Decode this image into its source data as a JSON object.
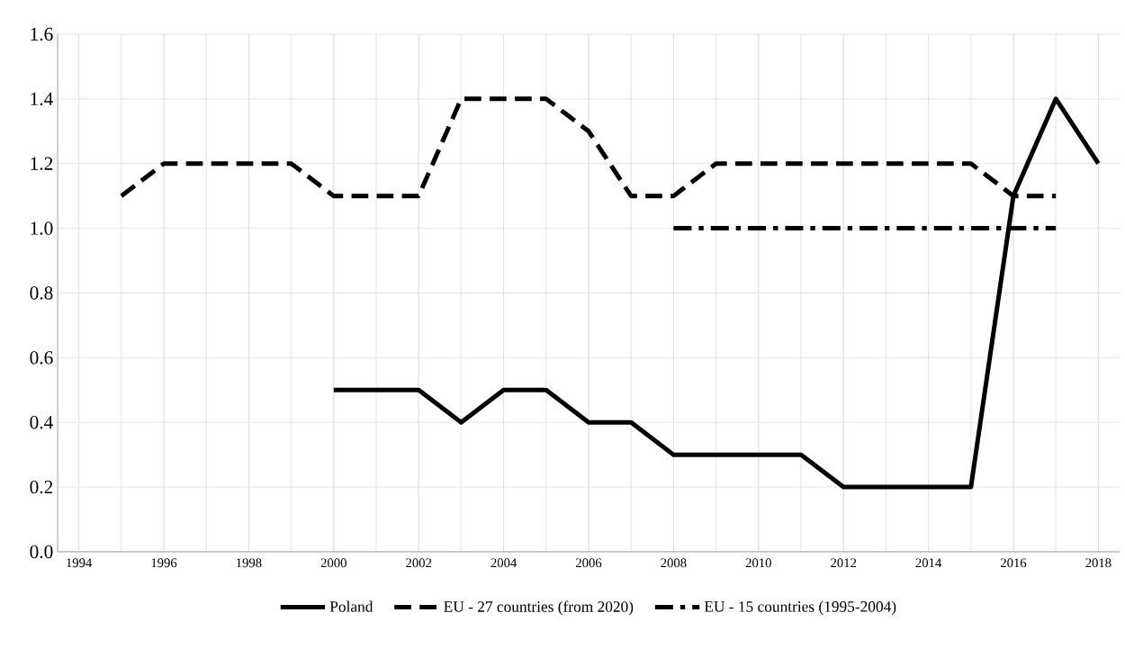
{
  "chart_data": {
    "type": "line",
    "series": [
      {
        "name": "Poland",
        "color": "#000000",
        "line_style": "solid",
        "x": [
          2000,
          2001,
          2002,
          2003,
          2004,
          2005,
          2006,
          2007,
          2008,
          2009,
          2010,
          2011,
          2012,
          2013,
          2014,
          2015,
          2016,
          2017,
          2018
        ],
        "values": [
          0.5,
          0.5,
          0.5,
          0.4,
          0.5,
          0.5,
          0.4,
          0.4,
          0.3,
          0.3,
          0.3,
          0.3,
          0.2,
          0.2,
          0.2,
          0.2,
          1.1,
          1.4,
          1.2
        ]
      },
      {
        "name": "EU - 27 countries (from 2020)",
        "color": "#000000",
        "line_style": "dashed",
        "x": [
          1995,
          1996,
          1997,
          1998,
          1999,
          2000,
          2001,
          2002,
          2003,
          2004,
          2005,
          2006,
          2007,
          2008,
          2009,
          2010,
          2011,
          2012,
          2013,
          2014,
          2015,
          2016,
          2017
        ],
        "values": [
          1.1,
          1.2,
          1.2,
          1.2,
          1.2,
          1.1,
          1.1,
          1.1,
          1.4,
          1.4,
          1.4,
          1.3,
          1.1,
          1.1,
          1.2,
          1.2,
          1.2,
          1.2,
          1.2,
          1.2,
          1.2,
          1.1,
          1.1
        ]
      },
      {
        "name": "EU - 15 countries (1995-2004)",
        "color": "#000000",
        "line_style": "dashdot",
        "x": [
          2008,
          2009,
          2010,
          2011,
          2012,
          2013,
          2014,
          2015,
          2016,
          2017
        ],
        "values": [
          1.0,
          1.0,
          1.0,
          1.0,
          1.0,
          1.0,
          1.0,
          1.0,
          1.0,
          1.0
        ]
      }
    ],
    "xlim": [
      1993.5,
      2018.5
    ],
    "xticks": [
      1994,
      1996,
      1998,
      2000,
      2002,
      2004,
      2006,
      2008,
      2010,
      2012,
      2014,
      2016,
      2018
    ],
    "ylim": [
      0,
      1.6
    ],
    "yticks": [
      {
        "value": 0,
        "label": "0.0"
      },
      {
        "value": 0.2,
        "label": "0.2"
      },
      {
        "value": 0.4,
        "label": "0.4"
      },
      {
        "value": 0.6,
        "label": "0.6"
      },
      {
        "value": 0.8,
        "label": "0.8"
      },
      {
        "value": 1.0,
        "label": "1.0"
      },
      {
        "value": 1.2,
        "label": "1.2"
      },
      {
        "value": 1.4,
        "label": "1.4"
      },
      {
        "value": 1.6,
        "label": "1.6"
      }
    ],
    "grid": true,
    "legend": "bottom",
    "marker": "none"
  }
}
